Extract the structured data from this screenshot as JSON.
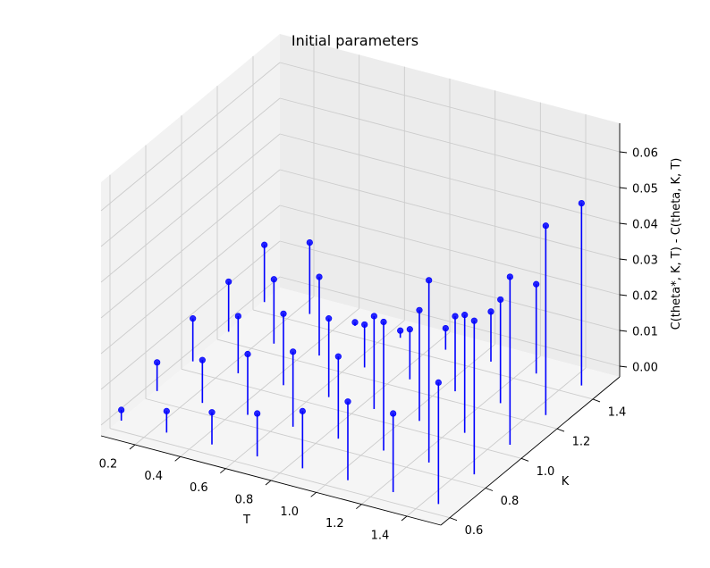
{
  "chart_data": {
    "type": "scatter",
    "subtype": "3d-stem",
    "title": "Initial parameters",
    "xlabel": "T",
    "ylabel": "K",
    "zlabel": "C(theta*, K, T) - C(theta, K, T)",
    "xlim": [
      0.05,
      1.55
    ],
    "ylim": [
      0.55,
      1.55
    ],
    "zlim": [
      -0.003,
      0.068
    ],
    "x_ticks": [
      "0.2",
      "0.4",
      "0.6",
      "0.8",
      "1.0",
      "1.2",
      "1.4"
    ],
    "y_ticks": [
      "0.6",
      "0.8",
      "1.0",
      "1.2",
      "1.4"
    ],
    "z_ticks": [
      "0.00",
      "0.01",
      "0.02",
      "0.03",
      "0.04",
      "0.05",
      "0.06"
    ],
    "grid": true,
    "stem_color": "#0000ff",
    "marker_color": "#0000ff",
    "T_values": [
      0.1,
      0.3,
      0.5,
      0.7,
      0.9,
      1.1,
      1.3,
      1.5
    ],
    "K_values": [
      0.6,
      0.8,
      1.0,
      1.2,
      1.4
    ],
    "points": [
      {
        "T": 0.1,
        "K": 0.6,
        "z": 0.003
      },
      {
        "T": 0.1,
        "K": 0.8,
        "z": 0.008
      },
      {
        "T": 0.1,
        "K": 1.0,
        "z": 0.012
      },
      {
        "T": 0.1,
        "K": 1.2,
        "z": 0.014
      },
      {
        "T": 0.1,
        "K": 1.4,
        "z": 0.016
      },
      {
        "T": 0.3,
        "K": 0.6,
        "z": 0.006
      },
      {
        "T": 0.3,
        "K": 0.8,
        "z": 0.012
      },
      {
        "T": 0.3,
        "K": 1.0,
        "z": 0.016
      },
      {
        "T": 0.3,
        "K": 1.2,
        "z": 0.018
      },
      {
        "T": 0.3,
        "K": 1.4,
        "z": 0.02
      },
      {
        "T": 0.5,
        "K": 0.6,
        "z": 0.009
      },
      {
        "T": 0.5,
        "K": 0.8,
        "z": 0.017
      },
      {
        "T": 0.5,
        "K": 1.0,
        "z": 0.02
      },
      {
        "T": 0.5,
        "K": 1.2,
        "z": 0.022
      },
      {
        "T": 0.5,
        "K": 1.4,
        "z": 0.001
      },
      {
        "T": 0.7,
        "K": 0.6,
        "z": 0.012
      },
      {
        "T": 0.7,
        "K": 0.8,
        "z": 0.021
      },
      {
        "T": 0.7,
        "K": 1.0,
        "z": 0.022
      },
      {
        "T": 0.7,
        "K": 1.2,
        "z": 0.012
      },
      {
        "T": 0.7,
        "K": 1.4,
        "z": 0.002
      },
      {
        "T": 0.9,
        "K": 0.6,
        "z": 0.016
      },
      {
        "T": 0.9,
        "K": 0.8,
        "z": 0.023
      },
      {
        "T": 0.9,
        "K": 1.0,
        "z": 0.026
      },
      {
        "T": 0.9,
        "K": 1.2,
        "z": 0.014
      },
      {
        "T": 0.9,
        "K": 1.4,
        "z": 0.006
      },
      {
        "T": 1.1,
        "K": 0.6,
        "z": 0.022
      },
      {
        "T": 1.1,
        "K": 0.8,
        "z": 0.036
      },
      {
        "T": 1.1,
        "K": 1.0,
        "z": 0.031
      },
      {
        "T": 1.1,
        "K": 1.2,
        "z": 0.021
      },
      {
        "T": 1.1,
        "K": 1.4,
        "z": 0.014
      },
      {
        "T": 1.3,
        "K": 0.6,
        "z": 0.022
      },
      {
        "T": 1.3,
        "K": 0.8,
        "z": 0.051
      },
      {
        "T": 1.3,
        "K": 1.0,
        "z": 0.033
      },
      {
        "T": 1.3,
        "K": 1.2,
        "z": 0.029
      },
      {
        "T": 1.3,
        "K": 1.4,
        "z": 0.025
      },
      {
        "T": 1.5,
        "K": 0.6,
        "z": 0.034
      },
      {
        "T": 1.5,
        "K": 0.8,
        "z": 0.043
      },
      {
        "T": 1.5,
        "K": 1.0,
        "z": 0.047
      },
      {
        "T": 1.5,
        "K": 1.2,
        "z": 0.053
      },
      {
        "T": 1.5,
        "K": 1.4,
        "z": 0.051
      }
    ]
  }
}
